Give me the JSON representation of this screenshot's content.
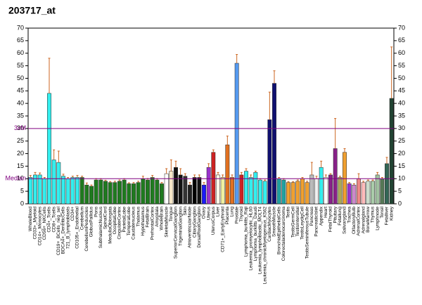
{
  "chart_data": {
    "type": "bar",
    "title": "203717_at",
    "categories": [
      "WholeBlood",
      "CD33+_Myeloid",
      "CD14+_Monocytes",
      "CD56+_NKCells",
      "CD4+_Tcells",
      "CD8+_Tcells",
      "CD19+_BCells_neg_sel",
      "BDCA4+_DentriticCells",
      "721_B_lymphoblasts",
      "CD34+",
      "CD105+_Endothelial",
      "Cerebellum",
      "CerebellumPeduncles",
      "GlobusPallidus",
      "Pons",
      "SubthalamicNucleus",
      "SpinalCord",
      "MedullaOblongata",
      "OccipitalLobe",
      "CingulateCortex",
      "ParietalLobe",
      "TemporalLobe",
      "Caudatenucleus",
      "Thalamus",
      "Hypothalamus",
      "FetalBrain",
      "PrefrontalCortex",
      "Amygdala",
      "WholeBrain",
      "SkeletalMuscle",
      "Tongue",
      "SuperiorCervicalGanglion",
      "TrigeminalGanglion",
      "Skin",
      "AtrioventricularNode",
      "CiliaryGanglion",
      "DorsalRootGanglion",
      "Ovary",
      "Uterus",
      "UterusCorpus",
      "Liver",
      "CD71+_EarlyErythroid",
      "Placenta",
      "Lung",
      "Prostate",
      "Thyroid",
      "Lymphoma_burkitts_Raji",
      "Leukemia_promyelocytic_HL60",
      "Lymphoma_burkitts_Daudi",
      "Leukemia_lymphoblastic_MOLT4",
      "Leukemia_chronicMyelogenous_K562",
      "CardiacMyocytes",
      "SmoothMuscle",
      "BronchialEpithelialCells",
      "Colorectaladenocarcinoma",
      "Testis",
      "TestisGermCell",
      "TestisIntersitial",
      "TestisLeydigCell",
      "TestisSeminiferousTubule",
      "Pancreas",
      "PancreaticIslet",
      "Appendix",
      "Heart",
      "FetalThyroid",
      "Pituitary",
      "Fetallung",
      "Salivarygland",
      "Trachea",
      "OlfactoryBulb",
      "AdrenalCortex",
      "Adrenalgland",
      "BoneMarrow",
      "Thymus",
      "Lymphnode",
      "Tonsil",
      "Fetalliver",
      "Kidney"
    ],
    "values": [
      10.5,
      11.5,
      11.5,
      10,
      44,
      17.5,
      16.5,
      11,
      10,
      10.5,
      10.5,
      10.5,
      7.5,
      7,
      9.5,
      9.5,
      9,
      8.5,
      8.5,
      9,
      9.5,
      8,
      8,
      8.5,
      10,
      9.5,
      10.5,
      9.5,
      8,
      12,
      13,
      14.5,
      11.5,
      11,
      7.5,
      10.5,
      10.5,
      7.5,
      14.5,
      20.5,
      11.5,
      10.5,
      23.5,
      10.5,
      56,
      11.5,
      13,
      10.5,
      12.5,
      9.5,
      9,
      33.5,
      48,
      10,
      9.5,
      8.5,
      8.5,
      9,
      10,
      8.5,
      11.5,
      10,
      14.5,
      10.5,
      11.5,
      22,
      10.5,
      20.5,
      8,
      7.5,
      10,
      8.5,
      9,
      9,
      11.5,
      10,
      16,
      42
    ],
    "errors": [
      0.8,
      1,
      0.8,
      0.5,
      14,
      4,
      4.5,
      0.8,
      0.5,
      0.5,
      0.8,
      0.5,
      0.8,
      0.5,
      0.5,
      0.5,
      0.4,
      0.4,
      0.5,
      0.5,
      0.5,
      0.4,
      0.5,
      0.5,
      1,
      0.6,
      0.8,
      0.5,
      0.5,
      2,
      4.5,
      2.5,
      2.5,
      1,
      1,
      1,
      1,
      1,
      1.5,
      1,
      1,
      1,
      3.5,
      1,
      3.5,
      1,
      1,
      1,
      0.5,
      0.5,
      0.5,
      11,
      5,
      0.5,
      0.5,
      0.4,
      0.3,
      0.5,
      0.5,
      0.5,
      5,
      1,
      2.5,
      1,
      0.5,
      12,
      0.5,
      1.5,
      0.5,
      0.5,
      2,
      0.5,
      0.5,
      0.5,
      1,
      0.5,
      2.5,
      20.5
    ],
    "colors": [
      "#33eeee",
      "#33eeee",
      "#33eeee",
      "#33eeee",
      "#33eeee",
      "#33eeee",
      "#33eeee",
      "#33eeee",
      "#33eeee",
      "#33eeee",
      "#33eeee",
      "#1f7a1f",
      "#1f7a1f",
      "#1f7a1f",
      "#1f7a1f",
      "#1f7a1f",
      "#1f7a1f",
      "#1f7a1f",
      "#1f7a1f",
      "#1f7a1f",
      "#1f7a1f",
      "#1f7a1f",
      "#1f7a1f",
      "#1f7a1f",
      "#1f7a1f",
      "#1f7a1f",
      "#1f7a1f",
      "#1f7a1f",
      "#1f7a1f",
      "#ffffff",
      "#f5e6c8",
      "#111111",
      "#111111",
      "#333333",
      "#222222",
      "#000000",
      "#111111",
      "#1a1aff",
      "#9933cc",
      "#cc2222",
      "#fff8e8",
      "#f0f0a0",
      "#e07020",
      "#e07020",
      "#5599ee",
      "#cc2222",
      "#33eeee",
      "#33eeee",
      "#33eeee",
      "#33eeee",
      "#33eeee",
      "#101070",
      "#101070",
      "#20a0a0",
      "#20a0a0",
      "#f0a030",
      "#f0a030",
      "#f0a030",
      "#f0a030",
      "#f0a030",
      "#bbbbbb",
      "#f0f0f0",
      "#33eeee",
      "#ffffff",
      "#882288",
      "#882288",
      "#aaaa55",
      "#f0a030",
      "#9933cc",
      "#cc88cc",
      "#ee8888",
      "#ffbbbb",
      "#ccddcc",
      "#aaccaa",
      "#a0c0a0",
      "#557755",
      "#336655",
      "#224433"
    ],
    "error_color": "#cc6622",
    "ylim": [
      0,
      70
    ],
    "yticks": [
      0,
      5,
      10,
      15,
      20,
      25,
      30,
      35,
      40,
      45,
      50,
      55,
      60,
      65,
      70
    ],
    "reference_lines": [
      {
        "label": "Median",
        "value": 10
      },
      {
        "label": "3xM",
        "value": 30
      }
    ],
    "reference_color": "#800080"
  }
}
